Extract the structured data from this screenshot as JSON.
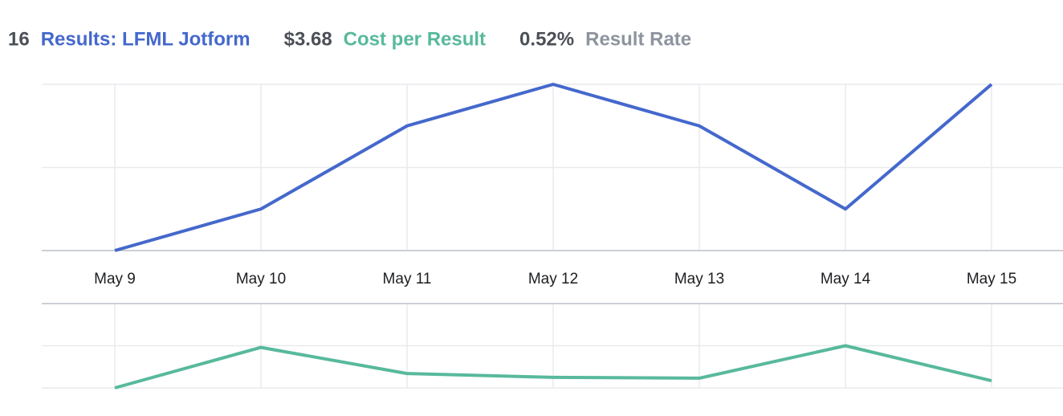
{
  "summary": [
    {
      "value": "16",
      "label": "Results: LFML Jotform",
      "color": "#4468cc"
    },
    {
      "value": "$3.68",
      "label": "Cost per Result",
      "color": "#58b99c"
    },
    {
      "value": "0.52%",
      "label": "Result Rate",
      "color": "#8d949e"
    }
  ],
  "chart_data": [
    {
      "type": "line",
      "categories": [
        "May 9",
        "May 10",
        "May 11",
        "May 12",
        "May 13",
        "May 14",
        "May 15"
      ],
      "series": [
        {
          "color": "#4468cc",
          "values": [
            0,
            1,
            3,
            4,
            3,
            1,
            4
          ]
        }
      ],
      "ylim": [
        0,
        4
      ],
      "yticks": [
        0,
        2,
        4
      ],
      "grid": true
    },
    {
      "type": "line",
      "series": [
        {
          "color": "#58b99c",
          "values": [
            0,
            9.6,
            3.4,
            2.5,
            2.3,
            10,
            1.7
          ]
        }
      ],
      "ylim": [
        0,
        20
      ],
      "yticks": [
        0,
        10,
        20
      ],
      "grid": true
    }
  ]
}
